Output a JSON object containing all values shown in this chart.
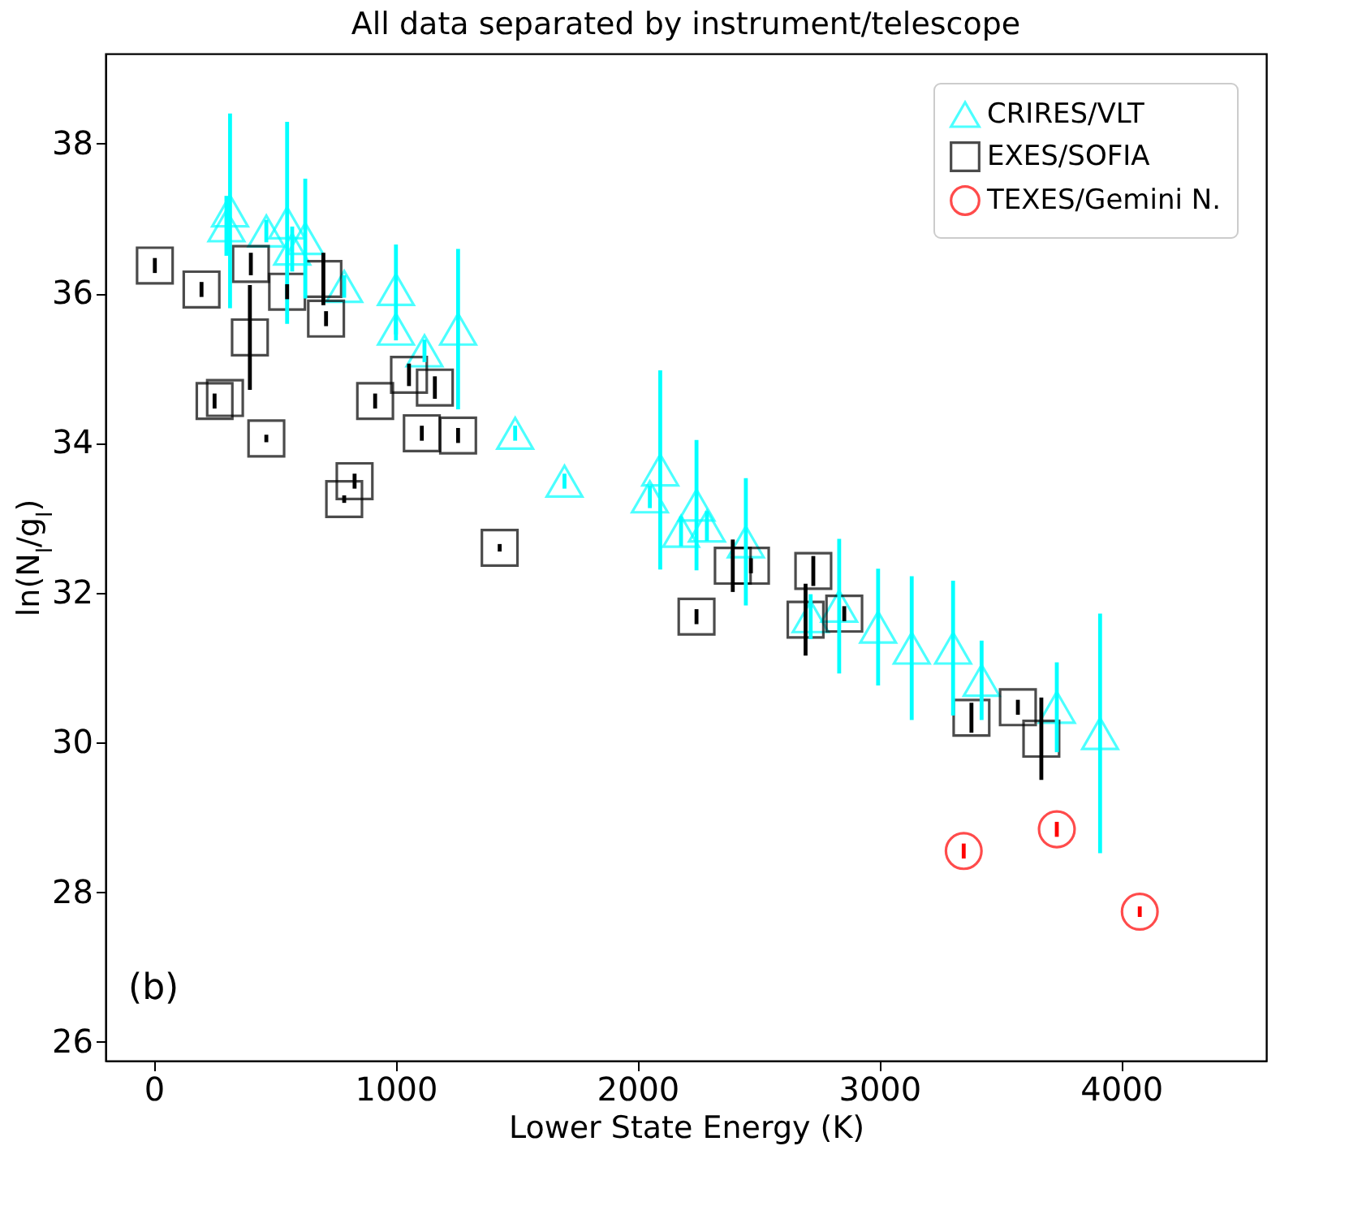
{
  "chart_data": {
    "type": "scatter",
    "title": "All data separated by instrument/telescope",
    "xlabel": "Lower State Energy (K)",
    "ylabel": "ln(N$_{l}$/g$_{l}$)",
    "xlim": [
      -200,
      4600
    ],
    "xticks": [
      0,
      1000,
      2000,
      3000,
      4000
    ],
    "ylim": [
      25.75,
      39.2
    ],
    "yticks": [
      26,
      28,
      30,
      32,
      34,
      36,
      38
    ],
    "grid": false,
    "legend": "top right",
    "annotations": [
      "(b)"
    ],
    "series": [
      {
        "name": "CRIRES/VLT",
        "color": "#00ffff",
        "marker": "triangle",
        "x": [
          315,
          300,
          465,
          551,
          626,
          572,
          787,
          1001,
          1001,
          1119,
          1258,
          1494,
          1698,
          2051,
          2094,
          2244,
          2180,
          2287,
          2448,
          2716,
          2834,
          2995,
          3134,
          3305,
          3423,
          3734,
          3913
        ],
        "values": [
          37.1,
          36.9,
          36.83,
          36.94,
          36.73,
          36.59,
          36.09,
          36.05,
          35.52,
          35.23,
          35.52,
          34.13,
          33.49,
          33.28,
          33.64,
          33.17,
          32.82,
          32.89,
          32.68,
          31.68,
          31.82,
          31.54,
          31.26,
          31.26,
          30.83,
          30.47,
          30.12
        ],
        "errors": [
          1.3,
          0.4,
          0.15,
          1.35,
          0.8,
          0.3,
          0.15,
          0.6,
          0.15,
          0.15,
          1.07,
          0.1,
          0.1,
          0.15,
          1.33,
          0.87,
          0.2,
          0.2,
          0.85,
          0.3,
          0.9,
          0.78,
          0.96,
          0.9,
          0.53,
          0.6,
          1.6
        ]
      },
      {
        "name": "EXES/SOFIA",
        "color": "#000000",
        "marker": "square",
        "x": [
          4,
          197,
          401,
          397,
          251,
          294,
          465,
          551,
          701,
          712,
          830,
          787,
          915,
          1055,
          1108,
          1162,
          1258,
          1430,
          2394,
          2469,
          2244,
          2727,
          2695,
          2855,
          3573,
          3381,
          3670
        ],
        "values": [
          36.37,
          36.05,
          36.39,
          35.41,
          34.56,
          34.6,
          34.06,
          36.02,
          36.19,
          35.66,
          33.49,
          33.25,
          34.56,
          34.91,
          34.13,
          34.74,
          34.1,
          32.6,
          32.36,
          32.36,
          31.68,
          32.29,
          31.64,
          31.72,
          30.47,
          30.33,
          30.05
        ],
        "errors": [
          0.1,
          0.1,
          0.15,
          0.7,
          0.1,
          null,
          0.05,
          0.1,
          0.35,
          0.1,
          0.1,
          0.05,
          0.1,
          0.15,
          0.1,
          0.15,
          0.1,
          0.05,
          0.35,
          0.1,
          0.1,
          0.2,
          0.48,
          0.1,
          0.1,
          0.2,
          0.55
        ]
      },
      {
        "name": "TEXES/Gemini N.",
        "color": "#ff0000",
        "marker": "circle",
        "x": [
          3349,
          3734,
          4077
        ],
        "values": [
          28.55,
          28.84,
          27.74
        ],
        "errors": [
          0.1,
          0.1,
          0.07
        ]
      }
    ]
  }
}
